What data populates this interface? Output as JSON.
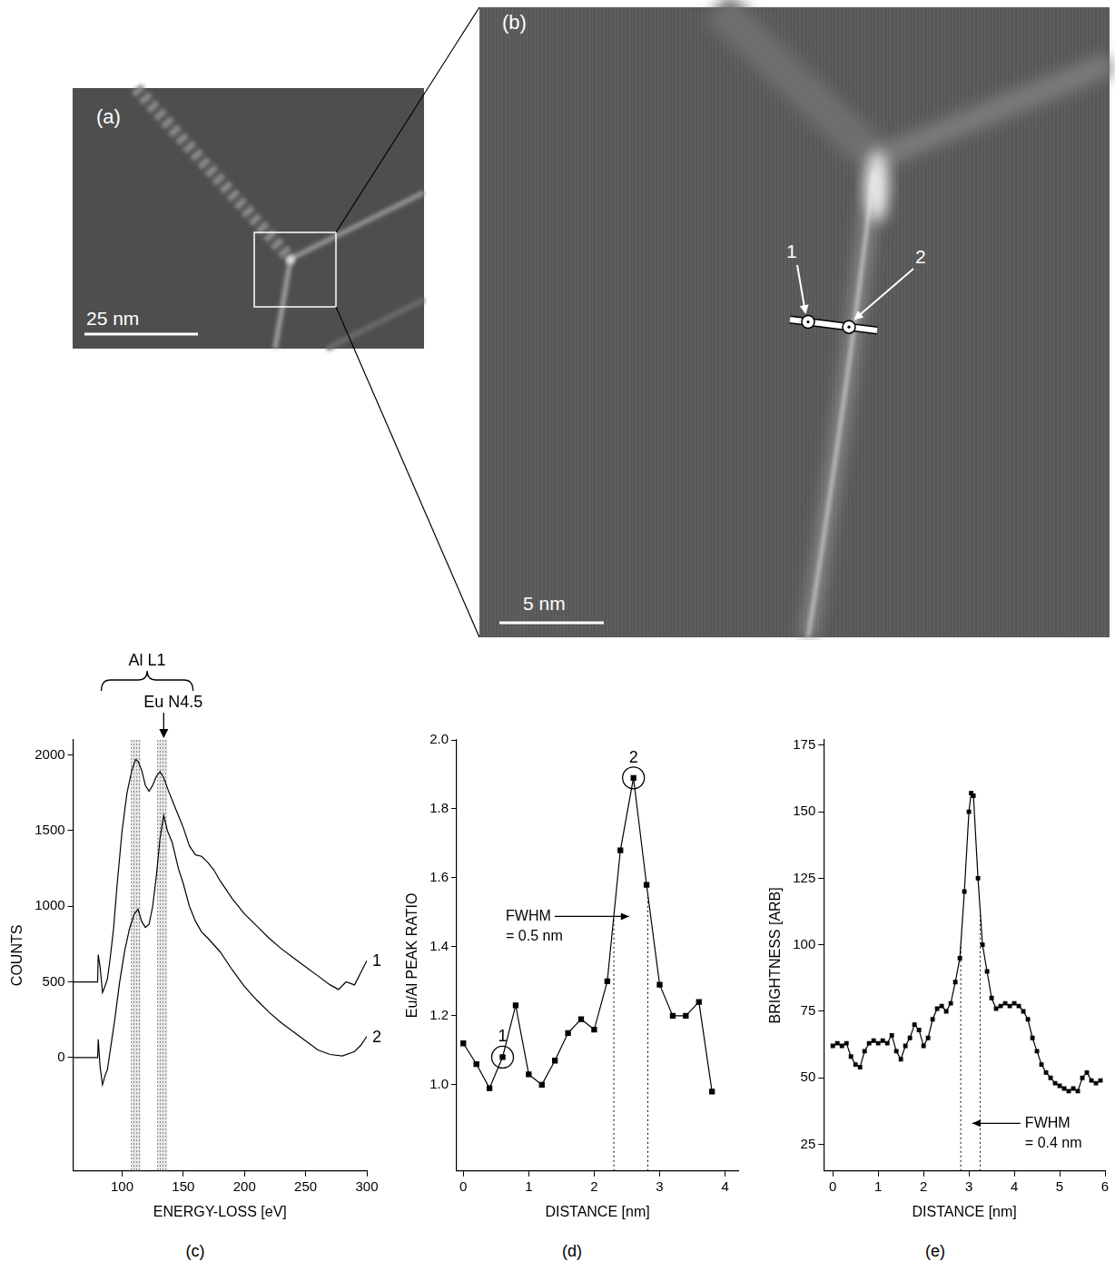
{
  "images": [
    {
      "label": "(a)",
      "scale_bar": "25 nm"
    },
    {
      "label": "(b)",
      "scale_bar": "5 nm",
      "markers": [
        "1",
        "2"
      ]
    }
  ],
  "chart_data": [
    {
      "type": "line",
      "panel": "(c)",
      "x_label": "ENERGY-LOSS [eV]",
      "y_label": "COUNTS",
      "xlim": [
        60,
        300
      ],
      "xticks": [
        100,
        150,
        200,
        250,
        300
      ],
      "ylim": [
        -750,
        2100
      ],
      "yticks": [
        0,
        500,
        1000,
        1500,
        2000
      ],
      "grid": false,
      "marker": "none",
      "series": [
        {
          "name": "1",
          "color": "#000000",
          "x": [
            60,
            80,
            80.5,
            82,
            84,
            86,
            88,
            90,
            93,
            96,
            100,
            104,
            108,
            111,
            113,
            116,
            119,
            122,
            125,
            128,
            131,
            134,
            138,
            142,
            146,
            150,
            155,
            160,
            165,
            170,
            175,
            180,
            190,
            200,
            210,
            220,
            230,
            240,
            250,
            260,
            270,
            277,
            283,
            290,
            295,
            300
          ],
          "values": [
            500,
            500,
            680,
            600,
            430,
            470,
            520,
            640,
            850,
            1150,
            1500,
            1750,
            1900,
            1970,
            1960,
            1900,
            1800,
            1760,
            1800,
            1860,
            1890,
            1850,
            1760,
            1680,
            1600,
            1520,
            1400,
            1340,
            1330,
            1290,
            1240,
            1170,
            1050,
            950,
            870,
            790,
            720,
            660,
            600,
            540,
            480,
            450,
            500,
            480,
            560,
            640
          ]
        },
        {
          "name": "2",
          "color": "#000000",
          "x": [
            60,
            80,
            80.5,
            82,
            84,
            86,
            88,
            90,
            94,
            98,
            102,
            106,
            110,
            113,
            116,
            119,
            122,
            125,
            128,
            131,
            134,
            137,
            141,
            146,
            150,
            155,
            160,
            165,
            170,
            180,
            190,
            200,
            210,
            220,
            230,
            240,
            250,
            260,
            270,
            280,
            290,
            295,
            300
          ],
          "values": [
            0,
            0,
            120,
            -60,
            -180,
            -120,
            -80,
            30,
            250,
            500,
            700,
            850,
            950,
            980,
            900,
            860,
            880,
            1000,
            1200,
            1450,
            1600,
            1500,
            1420,
            1250,
            1150,
            1000,
            900,
            830,
            790,
            700,
            580,
            470,
            380,
            300,
            230,
            170,
            110,
            50,
            20,
            10,
            40,
            80,
            140
          ]
        }
      ],
      "brace": {
        "label": "Al L1",
        "range": [
          83,
          158
        ]
      },
      "arrow": {
        "label": "Eu N4.5",
        "x": 134
      },
      "bands": [
        [
          107.5,
          115
        ],
        [
          129,
          137
        ]
      ]
    },
    {
      "type": "line",
      "panel": "(d)",
      "x_label": "DISTANCE [nm]",
      "y_label": "Eu/Al PEAK RATIO",
      "xlim": [
        -0.1,
        4.2
      ],
      "xticks": [
        0,
        1,
        2,
        3,
        4
      ],
      "ylim": [
        0.75,
        2.0
      ],
      "yticks": [
        {
          "value": 1,
          "label": "1.0"
        },
        1.2,
        1.4,
        1.6,
        1.8,
        {
          "value": 2,
          "label": "2.0"
        }
      ],
      "grid": false,
      "color": "#000000",
      "marker": "square",
      "x": [
        0,
        0.2,
        0.4,
        0.6,
        0.8,
        1.0,
        1.2,
        1.4,
        1.6,
        1.8,
        2.0,
        2.2,
        2.4,
        2.6,
        2.8,
        3.0,
        3.2,
        3.4,
        3.6,
        3.8
      ],
      "values": [
        1.12,
        1.06,
        0.99,
        1.08,
        1.23,
        1.03,
        1.0,
        1.07,
        1.15,
        1.19,
        1.16,
        1.3,
        1.68,
        1.89,
        1.58,
        1.29,
        1.2,
        1.2,
        1.24,
        0.98
      ],
      "circled": [
        {
          "label": "1",
          "x": 0.6
        },
        {
          "label": "2",
          "x": 2.6
        }
      ],
      "fwhm": {
        "label": [
          "FWHM",
          "= 0.5 nm"
        ],
        "lines": [
          2.3,
          2.82
        ]
      }
    },
    {
      "type": "line",
      "panel": "(e)",
      "x_label": "DISTANCE [nm]",
      "y_label": "BRIGHTNESS [ARB]",
      "xlim": [
        -0.2,
        6
      ],
      "xticks": [
        0,
        1,
        2,
        3,
        4,
        5,
        6
      ],
      "ylim": [
        15,
        177
      ],
      "yticks": [
        25,
        50,
        75,
        100,
        125,
        150,
        175
      ],
      "grid": false,
      "color": "#000000",
      "marker": "square",
      "x": [
        0,
        0.1,
        0.2,
        0.3,
        0.4,
        0.5,
        0.6,
        0.7,
        0.8,
        0.9,
        1.0,
        1.1,
        1.2,
        1.3,
        1.4,
        1.5,
        1.6,
        1.7,
        1.8,
        1.9,
        2.0,
        2.1,
        2.2,
        2.3,
        2.4,
        2.5,
        2.6,
        2.7,
        2.8,
        2.9,
        3.0,
        3.05,
        3.1,
        3.2,
        3.3,
        3.4,
        3.5,
        3.6,
        3.7,
        3.8,
        3.9,
        4.0,
        4.1,
        4.2,
        4.3,
        4.4,
        4.5,
        4.6,
        4.7,
        4.8,
        4.9,
        5.0,
        5.1,
        5.2,
        5.3,
        5.4,
        5.5,
        5.6,
        5.7,
        5.8,
        5.9
      ],
      "values": [
        62,
        63,
        62,
        63,
        58,
        55,
        54,
        60,
        63,
        64,
        63,
        64,
        63,
        66,
        60,
        57,
        62,
        65,
        70,
        68,
        62,
        65,
        72,
        76,
        77,
        75,
        78,
        86,
        95,
        120,
        150,
        157,
        156,
        125,
        100,
        90,
        80,
        76,
        77,
        78,
        77,
        78,
        77,
        75,
        72,
        65,
        60,
        55,
        52,
        50,
        48,
        47,
        46,
        45,
        46,
        45,
        50,
        52,
        49,
        48,
        49
      ],
      "fwhm": {
        "label": [
          "FWHM",
          "= 0.4 nm"
        ],
        "lines": [
          2.82,
          3.25
        ]
      }
    }
  ]
}
